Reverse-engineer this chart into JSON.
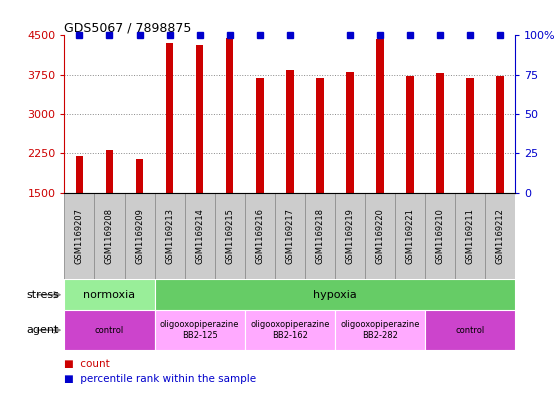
{
  "title": "GDS5067 / 7898875",
  "samples": [
    "GSM1169207",
    "GSM1169208",
    "GSM1169209",
    "GSM1169213",
    "GSM1169214",
    "GSM1169215",
    "GSM1169216",
    "GSM1169217",
    "GSM1169218",
    "GSM1169219",
    "GSM1169220",
    "GSM1169221",
    "GSM1169210",
    "GSM1169211",
    "GSM1169212"
  ],
  "counts": [
    2200,
    2320,
    2140,
    4350,
    4320,
    4450,
    3680,
    3840,
    3680,
    3800,
    4430,
    3730,
    3780,
    3680,
    3730
  ],
  "percentile": [
    100,
    100,
    100,
    100,
    100,
    100,
    100,
    100,
    0,
    100,
    100,
    100,
    100,
    100,
    100
  ],
  "bar_color": "#cc0000",
  "dot_color": "#0000cc",
  "ylim_left": [
    1500,
    4500
  ],
  "ylim_right": [
    0,
    100
  ],
  "yticks_left": [
    1500,
    2250,
    3000,
    3750,
    4500
  ],
  "yticks_right": [
    0,
    25,
    50,
    75,
    100
  ],
  "stress_groups": [
    {
      "label": "normoxia",
      "start": 0,
      "end": 3,
      "color": "#99ee99"
    },
    {
      "label": "hypoxia",
      "start": 3,
      "end": 15,
      "color": "#66cc66"
    }
  ],
  "agent_groups": [
    {
      "label": "control",
      "start": 0,
      "end": 3,
      "color": "#cc44cc"
    },
    {
      "label": "oligooxopiperazine\nBB2-125",
      "start": 3,
      "end": 6,
      "color": "#ffaaff"
    },
    {
      "label": "oligooxopiperazine\nBB2-162",
      "start": 6,
      "end": 9,
      "color": "#ffaaff"
    },
    {
      "label": "oligooxopiperazine\nBB2-282",
      "start": 9,
      "end": 12,
      "color": "#ffaaff"
    },
    {
      "label": "control",
      "start": 12,
      "end": 15,
      "color": "#cc44cc"
    }
  ],
  "left_axis_color": "#cc0000",
  "right_axis_color": "#0000cc",
  "grid_color": "#888888",
  "label_bg_color": "#cccccc",
  "label_line_color": "#888888"
}
